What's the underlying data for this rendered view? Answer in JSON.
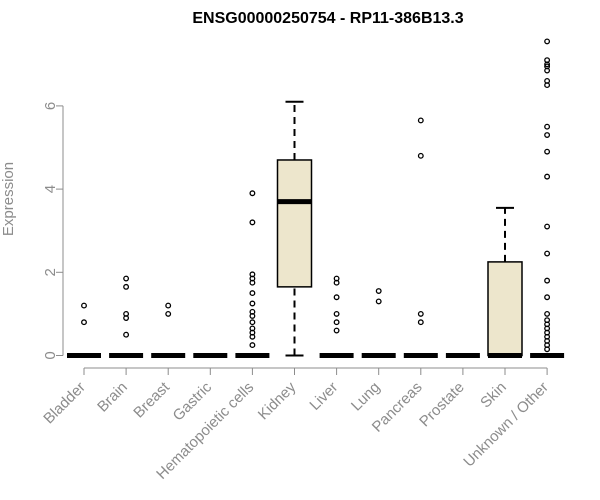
{
  "chart_data": {
    "type": "boxplot",
    "title": "ENSG00000250754 - RP11-386B13.3",
    "xlabel": "",
    "ylabel": "Expression",
    "ylim": [
      0,
      7.6
    ],
    "yticks": [
      0,
      2,
      4,
      6
    ],
    "box_fill": "#ede6cc",
    "grid": false,
    "categories": [
      "Bladder",
      "Brain",
      "Breast",
      "Gastric",
      "Hematopoietic cells",
      "Kidney",
      "Liver",
      "Lung",
      "Pancreas",
      "Prostate",
      "Skin",
      "Unknown / Other"
    ],
    "boxes": [
      {
        "min": 0,
        "q1": 0,
        "median": 0,
        "q3": 0,
        "max": 0,
        "outliers": [
          0.8,
          1.2
        ]
      },
      {
        "min": 0,
        "q1": 0,
        "median": 0,
        "q3": 0,
        "max": 0,
        "outliers": [
          0.5,
          0.9,
          1.0,
          1.65,
          1.85
        ]
      },
      {
        "min": 0,
        "q1": 0,
        "median": 0,
        "q3": 0,
        "max": 0,
        "outliers": [
          1.0,
          1.2
        ]
      },
      {
        "min": 0,
        "q1": 0,
        "median": 0,
        "q3": 0,
        "max": 0,
        "outliers": []
      },
      {
        "min": 0,
        "q1": 0,
        "median": 0,
        "q3": 0,
        "max": 0,
        "outliers": [
          0.25,
          0.45,
          0.55,
          0.65,
          0.8,
          0.95,
          1.05,
          1.25,
          1.5,
          1.75,
          1.85,
          1.95,
          3.2,
          3.9
        ]
      },
      {
        "min": 0,
        "q1": 1.65,
        "median": 3.7,
        "q3": 4.7,
        "max": 6.1,
        "outliers": []
      },
      {
        "min": 0,
        "q1": 0,
        "median": 0,
        "q3": 0,
        "max": 0,
        "outliers": [
          0.6,
          0.8,
          1.0,
          1.4,
          1.75,
          1.85
        ]
      },
      {
        "min": 0,
        "q1": 0,
        "median": 0,
        "q3": 0,
        "max": 0,
        "outliers": [
          1.3,
          1.55
        ]
      },
      {
        "min": 0,
        "q1": 0,
        "median": 0,
        "q3": 0,
        "max": 0,
        "outliers": [
          0.8,
          1.0,
          4.8,
          5.65
        ]
      },
      {
        "min": 0,
        "q1": 0,
        "median": 0,
        "q3": 0,
        "max": 0,
        "outliers": []
      },
      {
        "min": 0,
        "q1": 0,
        "median": 0,
        "q3": 2.25,
        "max": 3.55,
        "outliers": []
      },
      {
        "min": 0,
        "q1": 0,
        "median": 0,
        "q3": 0,
        "max": 0,
        "outliers": [
          0.15,
          0.25,
          0.35,
          0.45,
          0.55,
          0.65,
          0.75,
          0.85,
          1.0,
          1.4,
          1.8,
          2.45,
          3.1,
          4.3,
          4.9,
          5.3,
          5.5,
          6.5,
          6.6,
          6.85,
          6.95,
          7.0,
          7.1,
          7.55
        ]
      }
    ]
  }
}
